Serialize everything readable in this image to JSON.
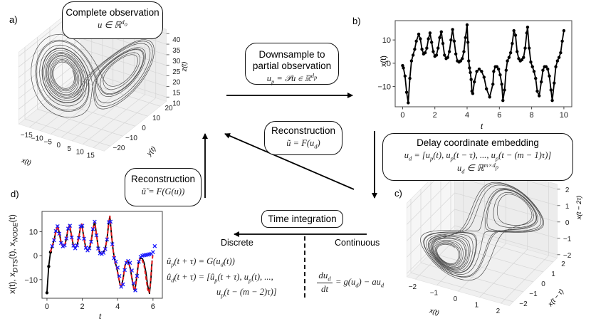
{
  "panel_labels": {
    "a": "a)",
    "b": "b)",
    "c": "c)",
    "d": "d)"
  },
  "boxes": {
    "complete": {
      "title": "Complete observation",
      "eq": "u ∈ ℝ^{d_o}"
    },
    "downsample": {
      "title1": "Downsample to",
      "title2": "partial observation",
      "eq": "u_p = 𝒫u ∈ ℝ^{d_p}"
    },
    "reconstruction_mid": {
      "title": "Reconstruction",
      "eq": "ũ = F(u_d)"
    },
    "reconstruction_left": {
      "title": "Reconstruction",
      "eq": "ũ̃ = F(G(u))"
    },
    "delay": {
      "title": "Delay coordinate embedding",
      "eq1": "u_d = [u_p(t), u_p(t − τ), ..., u_p(t − (m − 1)τ)]",
      "eq2": "u_d ∈ ℝ^{m×d_p}"
    },
    "time_integration": {
      "title": "Time integration"
    }
  },
  "labels": {
    "discrete": "Discrete",
    "continuous": "Continuous"
  },
  "equations": {
    "discrete1": "û_p(t + τ) = G(u_d(t))",
    "discrete2": "û_d(t + τ) = [û_p(t + τ), u_p(t), ...,",
    "discrete3": "u_p(t − (m − 2)τ)]",
    "continuous_num": "du_d",
    "continuous_den": "dt",
    "continuous_rhs": "= g(u_d) − au_d"
  },
  "chart_data": [
    {
      "id": "a",
      "type": "line3d",
      "xlabel": "x(t)",
      "ylabel": "y(t)",
      "zlabel": "z(t)",
      "xticks": [
        -15,
        -10,
        -5,
        0,
        5,
        10,
        15
      ],
      "yticks": [
        -20,
        -10,
        0,
        10,
        20
      ],
      "zticks": [
        10,
        15,
        20,
        25,
        30,
        35,
        40
      ],
      "xlim": [
        -20,
        20
      ],
      "ylim": [
        -25,
        25
      ],
      "zlim": [
        8,
        42
      ],
      "grid": true,
      "color": "#333333"
    },
    {
      "id": "b",
      "type": "line",
      "xlabel": "t",
      "ylabel": "x(t)",
      "xlim": [
        -0.46,
        10.49
      ],
      "ylim": [
        -18.7,
        18.3
      ],
      "xticks": [
        0,
        2,
        4,
        6,
        8,
        10
      ],
      "yticks": [
        -10,
        0,
        10
      ],
      "grid": false,
      "series": [
        {
          "color": "#000000",
          "marker": "dot",
          "line": "solid",
          "x": [
            0,
            0.05,
            0.15,
            0.25,
            0.35,
            0.45,
            0.55,
            0.65,
            0.75,
            0.85,
            1.0,
            1.1,
            1.2,
            1.3,
            1.4,
            1.5,
            1.6,
            1.7,
            1.8,
            1.9,
            2.0,
            2.1,
            2.2,
            2.3,
            2.4,
            2.5,
            2.6,
            2.7,
            2.8,
            2.9,
            3.0,
            3.1,
            3.2,
            3.3,
            3.4,
            3.5,
            3.6,
            3.7,
            3.8,
            3.9,
            4.0,
            4.05,
            4.1,
            4.15,
            4.2,
            4.25,
            4.3,
            4.35,
            4.45,
            4.6,
            4.75,
            4.9,
            5.05,
            5.2,
            5.4,
            5.6,
            5.65,
            5.75,
            5.85,
            5.95,
            6.05,
            6.15,
            6.22,
            6.32,
            6.42,
            6.5,
            6.6,
            6.7,
            6.8,
            6.9,
            7.0,
            7.1,
            7.2,
            7.3,
            7.4,
            7.5,
            7.6,
            7.7,
            7.75,
            7.85,
            7.95,
            8.05,
            8.15,
            8.25,
            8.35,
            8.47,
            8.6,
            8.7,
            8.8,
            8.9,
            9.0,
            9.1,
            9.2,
            9.28,
            9.4,
            9.5,
            9.6,
            9.7,
            9.8,
            9.9,
            10.0
          ],
          "y": [
            -1,
            -2,
            -5.5,
            -12.5,
            -17,
            -6.5,
            1,
            3.5,
            6,
            9.5,
            12.5,
            10.5,
            6,
            4,
            4.5,
            6.5,
            10.5,
            13,
            9,
            5,
            3,
            3.5,
            6.5,
            11,
            13.5,
            8.5,
            3.5,
            2,
            2.5,
            5,
            10,
            14.5,
            9.5,
            4,
            1,
            0.5,
            1,
            2,
            5,
            11,
            16.5,
            9,
            1,
            -2,
            -4,
            -7,
            -12,
            -13,
            -8,
            -3.5,
            -2.5,
            -3.5,
            -6,
            -11,
            -14.5,
            -9,
            -3.5,
            -1.5,
            -1.5,
            -2.5,
            -5,
            -9,
            -16,
            -11.5,
            -3,
            1,
            2.5,
            4.5,
            8.5,
            14,
            12,
            5,
            2,
            1,
            1.5,
            2.5,
            6.5,
            13,
            15.5,
            6.5,
            0.5,
            -1.5,
            -3.5,
            -6.5,
            -12,
            -14,
            -8,
            -3,
            -1.5,
            -1.5,
            -2.5,
            -5.5,
            -11.5,
            -16,
            -8.5,
            -1.5,
            1,
            2.5,
            4.5,
            9.5,
            14
          ]
        }
      ]
    },
    {
      "id": "c",
      "type": "line3d",
      "xlabel": "x(t)",
      "ylabel": "x(t − τ)",
      "zlabel": "x(t − 2τ)",
      "xticks": [
        -2,
        -1,
        0,
        1,
        2
      ],
      "yticks": [
        -2,
        -1,
        0,
        1,
        2
      ],
      "zticks": [
        -2,
        -1,
        0,
        1,
        2
      ],
      "xlim": [
        -2.4,
        2.4
      ],
      "ylim": [
        -2.4,
        2.4
      ],
      "zlim": [
        -2.2,
        2.3
      ],
      "grid": true,
      "color": "#333333"
    },
    {
      "id": "d",
      "type": "line",
      "xlabel": "t",
      "ylabel": "x(t), x_{DTS}(t), x_{NODE}(t)",
      "xlim": [
        -0.28,
        6.53
      ],
      "ylim": [
        -17.8,
        18.5
      ],
      "xticks": [
        0,
        2,
        4,
        6
      ],
      "yticks": [
        -10,
        0,
        10
      ],
      "grid": false,
      "series": [
        {
          "color": "#000000",
          "line": "solid",
          "marker": "none",
          "x": [
            0,
            0.1,
            0.2,
            0.3,
            0.4,
            0.5,
            0.6,
            0.7,
            0.8,
            0.9,
            1.0,
            1.1,
            1.2,
            1.28,
            1.4,
            1.5,
            1.6,
            1.7,
            1.8,
            1.9,
            1.97,
            2.1,
            2.2,
            2.3,
            2.4,
            2.5,
            2.6,
            2.7,
            2.8,
            2.9,
            3.0,
            3.1,
            3.2,
            3.3,
            3.4,
            3.5,
            3.56,
            3.65,
            3.75,
            3.85,
            3.95,
            4.05,
            4.15,
            4.22,
            4.32,
            4.42,
            4.52,
            4.62,
            4.72,
            4.82,
            4.92,
            4.98,
            5.08,
            5.18,
            5.28,
            5.4,
            5.5,
            5.6,
            5.7,
            5.8,
            5.88,
            5.95
          ],
          "y": [
            -15.5,
            -4.5,
            1.5,
            4,
            6.5,
            10,
            12.5,
            9.5,
            5.5,
            3.8,
            4.2,
            7,
            11.5,
            12.8,
            8,
            4,
            3.2,
            4.2,
            7.5,
            12,
            13.2,
            7,
            3.2,
            2.2,
            3,
            6,
            11,
            14.3,
            9,
            3.5,
            1.2,
            0.8,
            1.5,
            3,
            7,
            14,
            16.5,
            9,
            2,
            -2.5,
            -5,
            -9,
            -12.5,
            -13,
            -9,
            -4,
            -2.3,
            -2.8,
            -5.5,
            -10,
            -14,
            -14.6,
            -9,
            -3,
            -1,
            -1.2,
            -3,
            -7,
            -12.5,
            -15.8,
            -10,
            -2
          ]
        },
        {
          "color": "#000000",
          "line": "none",
          "marker": "dot",
          "x": [
            0,
            0.1,
            0.2
          ],
          "y": [
            -15.5,
            -4.5,
            1.5
          ]
        },
        {
          "color": "#e41a1c",
          "line": "dashed",
          "marker": "none",
          "x": [
            0.2,
            0.3,
            0.4,
            0.5,
            0.6,
            0.7,
            0.8,
            0.9,
            1.0,
            1.1,
            1.2,
            1.28,
            1.4,
            1.5,
            1.6,
            1.7,
            1.8,
            1.9,
            1.97,
            2.1,
            2.2,
            2.3,
            2.4,
            2.5,
            2.6,
            2.7,
            2.8,
            2.9,
            3.0,
            3.1,
            3.2,
            3.3,
            3.4,
            3.5,
            3.56,
            3.65,
            3.75,
            3.85,
            3.95,
            4.05,
            4.15,
            4.22,
            4.32,
            4.42,
            4.52,
            4.62,
            4.72,
            4.82,
            4.92,
            4.98,
            5.08,
            5.18,
            5.28,
            5.4,
            5.5,
            5.6,
            5.7,
            5.78,
            5.85,
            5.93,
            6.0
          ],
          "y": [
            1.5,
            4,
            6.5,
            10,
            12.5,
            9.5,
            5.5,
            3.8,
            4.2,
            7,
            11.5,
            12.8,
            8,
            4,
            3.2,
            4.2,
            7.5,
            12,
            13.2,
            7,
            3.2,
            2.2,
            3,
            6,
            11,
            14.3,
            9,
            3.5,
            1.2,
            0.8,
            1.5,
            3,
            7,
            14,
            16.5,
            9,
            2,
            -2.5,
            -5,
            -9,
            -12.5,
            -13,
            -9,
            -4,
            -2.3,
            -2.8,
            -5.5,
            -10,
            -14,
            -14.6,
            -9,
            -3,
            -1.2,
            -2,
            -4,
            -9,
            -14,
            -15.5,
            -12,
            -4,
            1
          ]
        },
        {
          "color": "#1a1aff",
          "line": "none",
          "marker": "x",
          "x": [
            0.3,
            0.4,
            0.5,
            0.6,
            0.7,
            0.8,
            0.9,
            1.0,
            1.1,
            1.2,
            1.3,
            1.4,
            1.5,
            1.6,
            1.7,
            1.8,
            1.9,
            2.0,
            2.1,
            2.2,
            2.3,
            2.4,
            2.5,
            2.6,
            2.7,
            2.8,
            2.9,
            3.0,
            3.1,
            3.2,
            3.3,
            3.4,
            3.5,
            3.6,
            3.7,
            3.8,
            3.9,
            4.0,
            4.1,
            4.2,
            4.3,
            4.4,
            4.5,
            4.6,
            4.7,
            4.8,
            4.9,
            5.0,
            5.1,
            5.2,
            5.3,
            5.4,
            5.5,
            5.6,
            5.7,
            5.8,
            5.9,
            6.0,
            6.1
          ],
          "y": [
            4,
            6.5,
            10.3,
            12.3,
            9.2,
            5.3,
            3.9,
            4.3,
            7.2,
            11.3,
            12.5,
            7.6,
            4.2,
            3.1,
            4.3,
            7.4,
            12.2,
            12.5,
            7.1,
            3.3,
            2.2,
            3.1,
            5.8,
            11.1,
            14.2,
            8.5,
            3,
            1,
            0.7,
            1.2,
            2.8,
            6.8,
            14,
            14.2,
            4.8,
            -1,
            -2.5,
            -5,
            -8.5,
            -13,
            -12,
            -6,
            -3,
            -2.2,
            -3,
            -6.2,
            -11.5,
            -14.5,
            -8.5,
            -2.5,
            -0.5,
            0,
            0.2,
            0.3,
            0.4,
            0.6,
            0.8,
            1.5,
            4
          ]
        }
      ]
    }
  ]
}
